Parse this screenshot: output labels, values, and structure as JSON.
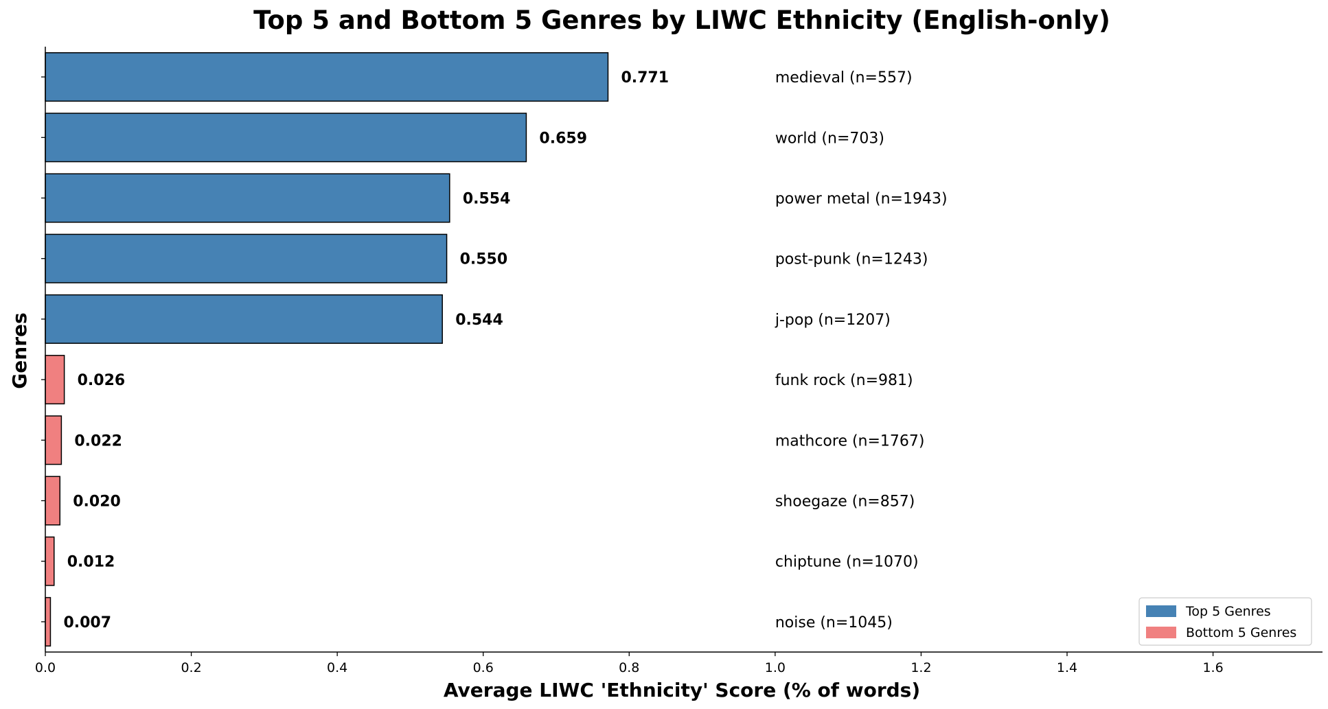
{
  "chart_data": {
    "type": "bar",
    "orientation": "horizontal",
    "title": "Top 5 and Bottom 5 Genres by LIWC Ethnicity (English-only)",
    "xlabel": "Average LIWC 'Ethnicity' Score (% of words)",
    "ylabel": "Genres",
    "xlim": [
      0,
      1.75
    ],
    "xticks": [
      "0.0",
      "0.2",
      "0.4",
      "0.6",
      "0.8",
      "1.0",
      "1.2",
      "1.4",
      "1.6"
    ],
    "grid": false,
    "legend_position": "bottom-right",
    "colors": {
      "top": "#4682b4",
      "bottom": "#f08080",
      "edge": "#000000"
    },
    "legend": [
      {
        "group": "top",
        "label": "Top 5 Genres"
      },
      {
        "group": "bottom",
        "label": "Bottom 5 Genres"
      }
    ],
    "bars": [
      {
        "genre_label": "medieval (n=557)",
        "value": 0.771,
        "value_label": "0.771",
        "group": "top"
      },
      {
        "genre_label": "world (n=703)",
        "value": 0.659,
        "value_label": "0.659",
        "group": "top"
      },
      {
        "genre_label": "power metal (n=1943)",
        "value": 0.554,
        "value_label": "0.554",
        "group": "top"
      },
      {
        "genre_label": "post-punk (n=1243)",
        "value": 0.55,
        "value_label": "0.550",
        "group": "top"
      },
      {
        "genre_label": "j-pop (n=1207)",
        "value": 0.544,
        "value_label": "0.544",
        "group": "top"
      },
      {
        "genre_label": "funk rock (n=981)",
        "value": 0.026,
        "value_label": "0.026",
        "group": "bottom"
      },
      {
        "genre_label": "mathcore (n=1767)",
        "value": 0.022,
        "value_label": "0.022",
        "group": "bottom"
      },
      {
        "genre_label": "shoegaze (n=857)",
        "value": 0.02,
        "value_label": "0.020",
        "group": "bottom"
      },
      {
        "genre_label": "chiptune (n=1070)",
        "value": 0.012,
        "value_label": "0.012",
        "group": "bottom"
      },
      {
        "genre_label": "noise (n=1045)",
        "value": 0.007,
        "value_label": "0.007",
        "group": "bottom"
      }
    ]
  }
}
